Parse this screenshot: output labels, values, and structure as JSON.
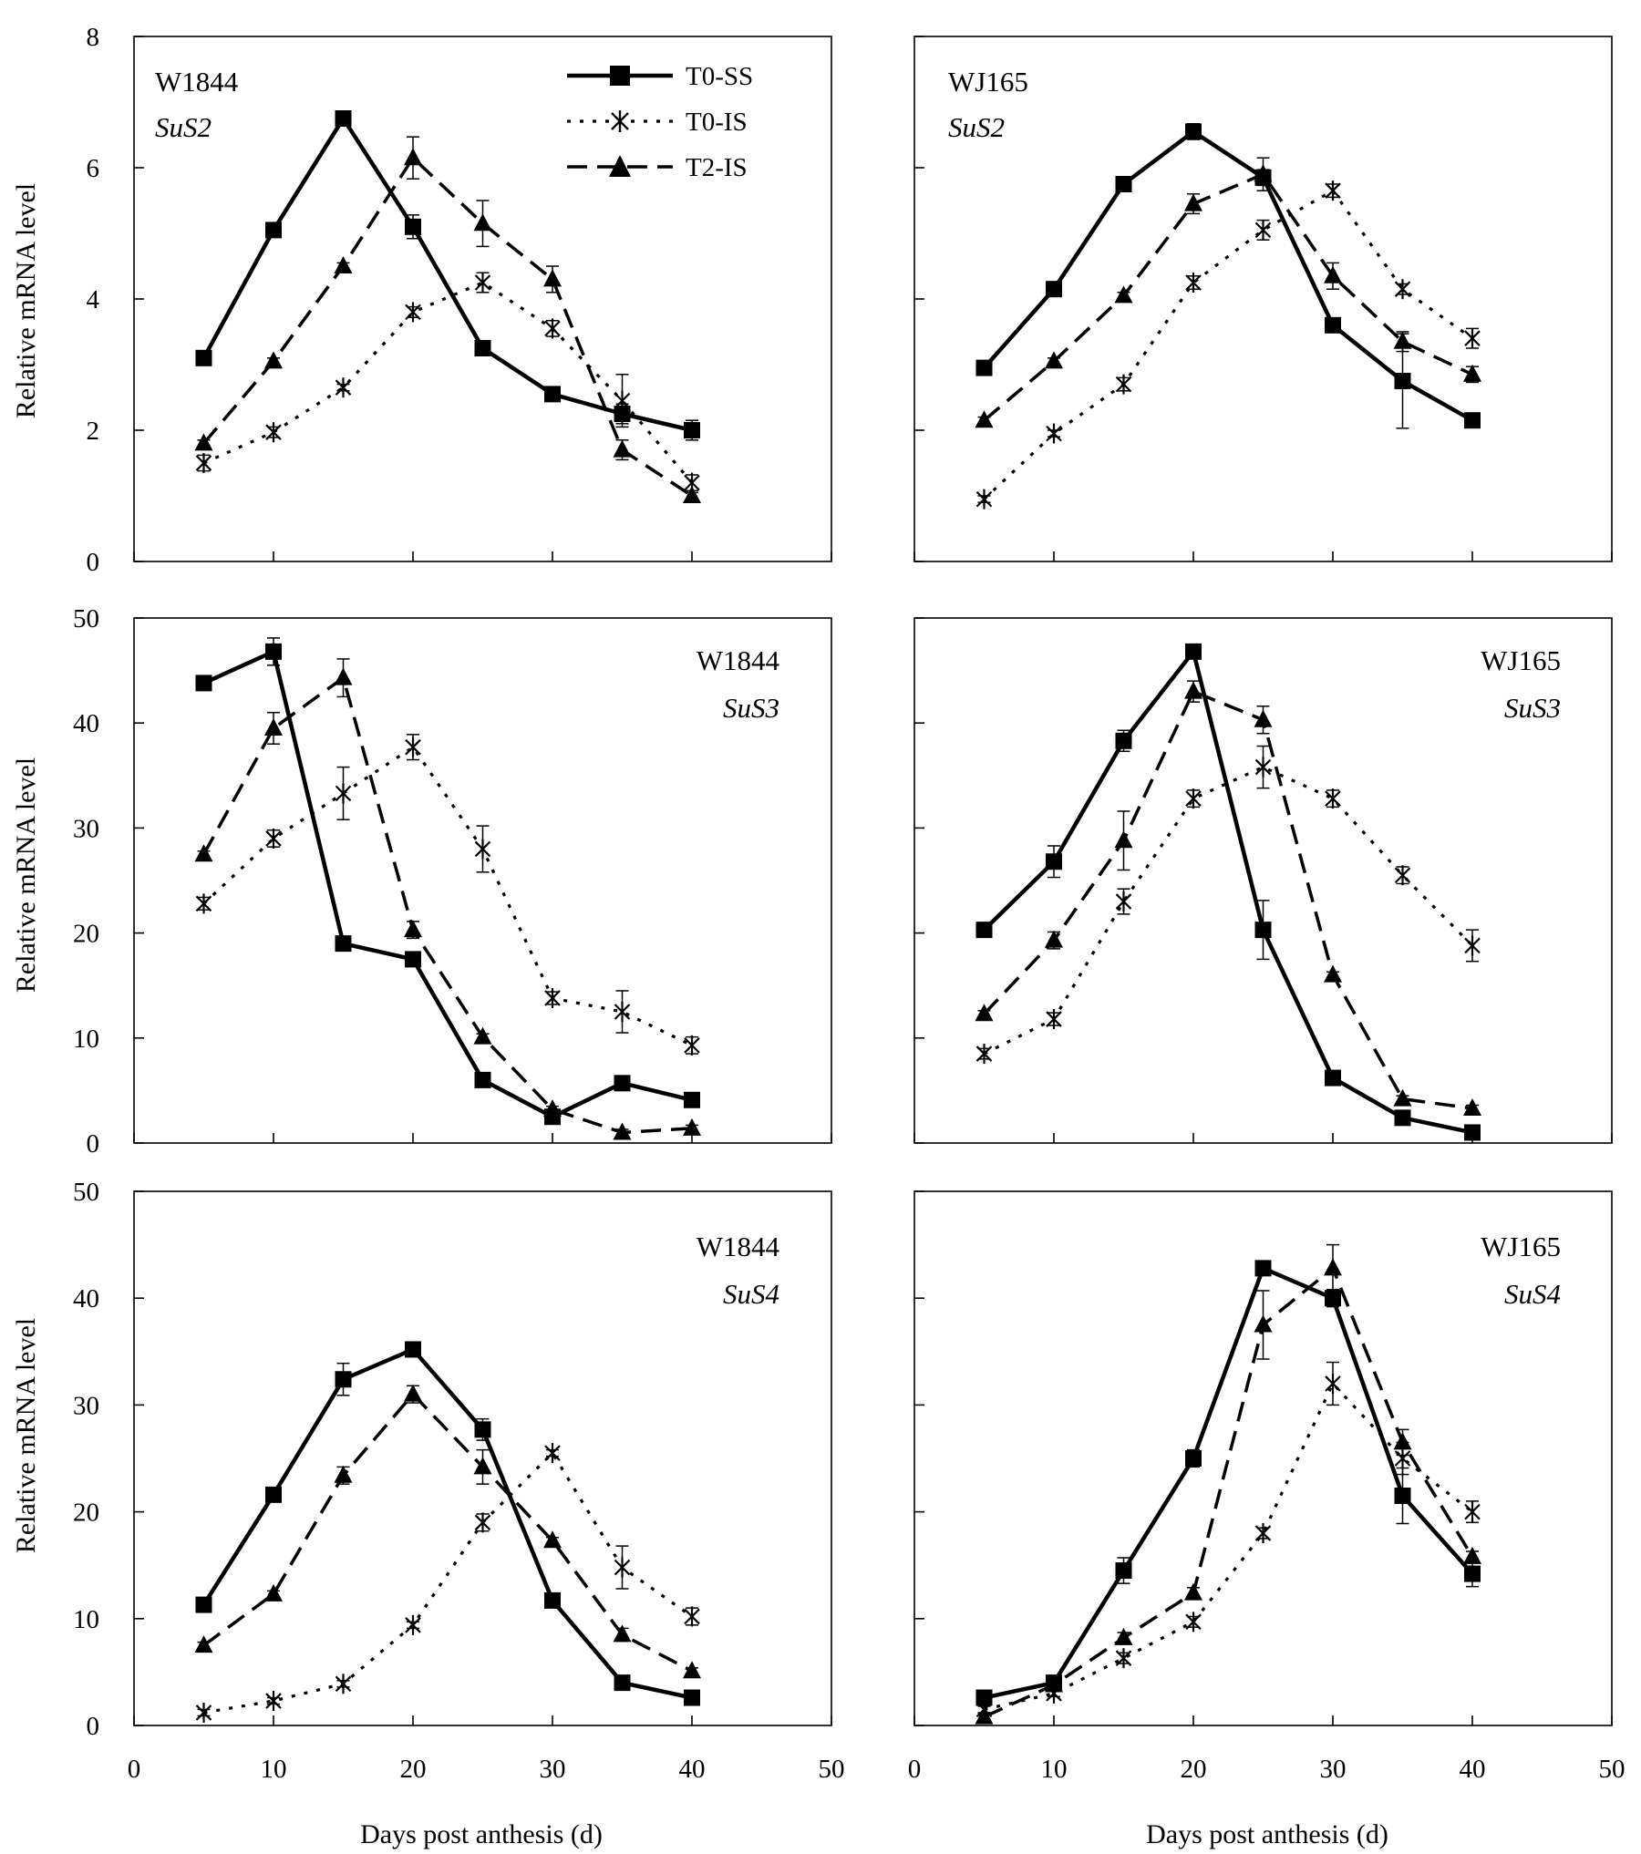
{
  "figure": {
    "xlabel": "Days post anthesis (d)",
    "ylabel": "Relative mRNA level"
  },
  "legend": {
    "entries": [
      {
        "key": "T0-SS",
        "label": "T0-SS",
        "marker": "square",
        "dash": "solid"
      },
      {
        "key": "T0-IS",
        "label": "T0-IS",
        "marker": "asterisk",
        "dash": "dotted"
      },
      {
        "key": "T2-IS",
        "label": "T2-IS",
        "marker": "triangle",
        "dash": "dashed"
      }
    ]
  },
  "chart_data": [
    {
      "type": "line",
      "cultivar": "W1844",
      "gene": "SuS2",
      "x": [
        5,
        10,
        15,
        20,
        25,
        30,
        35,
        40
      ],
      "xlim": [
        0,
        50
      ],
      "xticks": [
        0,
        10,
        20,
        30,
        40,
        50
      ],
      "ylim": [
        0,
        8
      ],
      "yticks": [
        0,
        2,
        4,
        6,
        8
      ],
      "series": [
        {
          "name": "T0-SS",
          "values": [
            3.1,
            5.05,
            6.75,
            5.1,
            3.25,
            2.55,
            2.25,
            2.0
          ],
          "errors": [
            0.05,
            0.05,
            0.05,
            0.18,
            0.05,
            0.05,
            0.15,
            0.15
          ]
        },
        {
          "name": "T0-IS",
          "values": [
            1.5,
            1.97,
            2.65,
            3.8,
            4.25,
            3.55,
            2.45,
            1.2
          ],
          "errors": [
            0.12,
            0.08,
            0.05,
            0.08,
            0.15,
            0.12,
            0.4,
            0.12
          ]
        },
        {
          "name": "T2-IS",
          "values": [
            1.8,
            3.05,
            4.5,
            6.15,
            5.15,
            4.3,
            1.7,
            1.0
          ],
          "errors": [
            0.05,
            0.05,
            0.05,
            0.32,
            0.35,
            0.2,
            0.15,
            0.05
          ]
        }
      ]
    },
    {
      "type": "line",
      "cultivar": "WJ165",
      "gene": "SuS2",
      "x": [
        5,
        10,
        15,
        20,
        25,
        30,
        35,
        40
      ],
      "xlim": [
        0,
        50
      ],
      "xticks": [
        0,
        10,
        20,
        30,
        40,
        50
      ],
      "ylim": [
        0,
        8
      ],
      "yticks": [
        0,
        2,
        4,
        6,
        8
      ],
      "series": [
        {
          "name": "T0-SS",
          "values": [
            2.95,
            4.15,
            5.75,
            6.55,
            5.85,
            3.6,
            2.75,
            2.15
          ],
          "errors": [
            0.05,
            0.05,
            0.05,
            0.12,
            0.12,
            0.05,
            0.72,
            0.05
          ]
        },
        {
          "name": "T0-IS",
          "values": [
            0.95,
            1.95,
            2.7,
            4.25,
            5.05,
            5.65,
            4.15,
            3.4
          ],
          "errors": [
            0.05,
            0.05,
            0.1,
            0.1,
            0.15,
            0.1,
            0.08,
            0.15
          ]
        },
        {
          "name": "T2-IS",
          "values": [
            2.15,
            3.05,
            4.05,
            5.45,
            5.9,
            4.35,
            3.35,
            2.85
          ],
          "errors": [
            0.05,
            0.05,
            0.05,
            0.15,
            0.25,
            0.2,
            0.15,
            0.12
          ]
        }
      ]
    },
    {
      "type": "line",
      "cultivar": "W1844",
      "gene": "SuS3",
      "x": [
        5,
        10,
        15,
        20,
        25,
        30,
        35,
        40
      ],
      "xlim": [
        0,
        50
      ],
      "xticks": [
        0,
        10,
        20,
        30,
        40,
        50
      ],
      "ylim": [
        0,
        50
      ],
      "yticks": [
        0,
        10,
        20,
        30,
        40,
        50
      ],
      "series": [
        {
          "name": "T0-SS",
          "values": [
            43.8,
            46.8,
            19.0,
            17.5,
            6.0,
            2.5,
            5.7,
            4.1
          ],
          "errors": [
            0.3,
            1.3,
            0.3,
            0.3,
            0.3,
            0.3,
            0.3,
            0.3
          ]
        },
        {
          "name": "T0-IS",
          "values": [
            22.8,
            29.0,
            33.3,
            37.7,
            28.0,
            13.8,
            12.5,
            9.3
          ],
          "errors": [
            0.6,
            0.8,
            2.5,
            1.2,
            2.2,
            0.6,
            2.0,
            0.8
          ]
        },
        {
          "name": "T2-IS",
          "values": [
            27.5,
            39.5,
            44.3,
            20.3,
            10.1,
            3.2,
            1.0,
            1.4
          ],
          "errors": [
            0.3,
            1.5,
            1.8,
            0.8,
            0.3,
            0.3,
            0.3,
            0.3
          ]
        }
      ]
    },
    {
      "type": "line",
      "cultivar": "WJ165",
      "gene": "SuS3",
      "x": [
        5,
        10,
        15,
        20,
        25,
        30,
        35,
        40
      ],
      "xlim": [
        0,
        50
      ],
      "xticks": [
        0,
        10,
        20,
        30,
        40,
        50
      ],
      "ylim": [
        0,
        50
      ],
      "yticks": [
        0,
        10,
        20,
        30,
        40,
        50
      ],
      "series": [
        {
          "name": "T0-SS",
          "values": [
            20.3,
            26.8,
            38.3,
            46.8,
            20.3,
            6.2,
            2.4,
            1.0
          ],
          "errors": [
            0.3,
            1.5,
            1.0,
            0.5,
            2.8,
            0.3,
            0.3,
            0.3
          ]
        },
        {
          "name": "T0-IS",
          "values": [
            8.5,
            11.8,
            23.0,
            32.8,
            35.8,
            32.8,
            25.5,
            18.8
          ],
          "errors": [
            0.5,
            0.6,
            1.2,
            0.8,
            2.0,
            0.8,
            0.8,
            1.5
          ]
        },
        {
          "name": "T2-IS",
          "values": [
            12.3,
            19.3,
            28.8,
            43.0,
            40.3,
            16.0,
            4.2,
            3.3
          ],
          "errors": [
            0.3,
            0.8,
            2.8,
            1.0,
            1.3,
            0.3,
            0.3,
            0.3
          ]
        }
      ]
    },
    {
      "type": "line",
      "cultivar": "W1844",
      "gene": "SuS4",
      "x": [
        5,
        10,
        15,
        20,
        25,
        30,
        35,
        40
      ],
      "xlim": [
        0,
        50
      ],
      "xticks": [
        0,
        10,
        20,
        30,
        40,
        50
      ],
      "ylim": [
        0,
        50
      ],
      "yticks": [
        0,
        10,
        20,
        30,
        40,
        50
      ],
      "series": [
        {
          "name": "T0-SS",
          "values": [
            11.3,
            21.6,
            32.4,
            35.2,
            27.7,
            11.7,
            4.0,
            2.6
          ],
          "errors": [
            0.3,
            0.3,
            1.5,
            0.3,
            1.0,
            0.3,
            0.3,
            0.3
          ]
        },
        {
          "name": "T0-IS",
          "values": [
            1.2,
            2.3,
            3.9,
            9.4,
            19.0,
            25.5,
            14.8,
            10.2
          ],
          "errors": [
            0.3,
            0.3,
            0.3,
            0.3,
            0.8,
            0.3,
            2.0,
            0.8
          ]
        },
        {
          "name": "T2-IS",
          "values": [
            7.5,
            12.3,
            23.4,
            31.0,
            24.2,
            17.3,
            8.5,
            5.1
          ],
          "errors": [
            0.3,
            0.3,
            0.8,
            0.8,
            1.6,
            0.3,
            0.6,
            0.3
          ]
        }
      ]
    },
    {
      "type": "line",
      "cultivar": "WJ165",
      "gene": "SuS4",
      "x": [
        5,
        10,
        15,
        20,
        25,
        30,
        35,
        40
      ],
      "xlim": [
        0,
        50
      ],
      "xticks": [
        0,
        10,
        20,
        30,
        40,
        50
      ],
      "ylim": [
        0,
        50
      ],
      "yticks": [
        0,
        10,
        20,
        30,
        40,
        50
      ],
      "series": [
        {
          "name": "T0-SS",
          "values": [
            2.6,
            4.0,
            14.5,
            25.0,
            42.8,
            40.0,
            21.5,
            14.2
          ],
          "errors": [
            0.3,
            0.3,
            1.2,
            0.8,
            0.3,
            0.8,
            2.6,
            1.2
          ]
        },
        {
          "name": "T0-IS",
          "values": [
            1.5,
            3.0,
            6.3,
            9.7,
            18.0,
            32.0,
            25.0,
            20.0
          ],
          "errors": [
            0.3,
            0.3,
            0.5,
            0.5,
            0.5,
            2.0,
            1.5,
            1.0
          ]
        },
        {
          "name": "T2-IS",
          "values": [
            0.8,
            3.8,
            8.2,
            12.4,
            37.5,
            42.8,
            26.5,
            15.8
          ],
          "errors": [
            0.3,
            0.3,
            0.5,
            0.5,
            3.2,
            2.2,
            1.2,
            0.5
          ]
        }
      ]
    }
  ]
}
